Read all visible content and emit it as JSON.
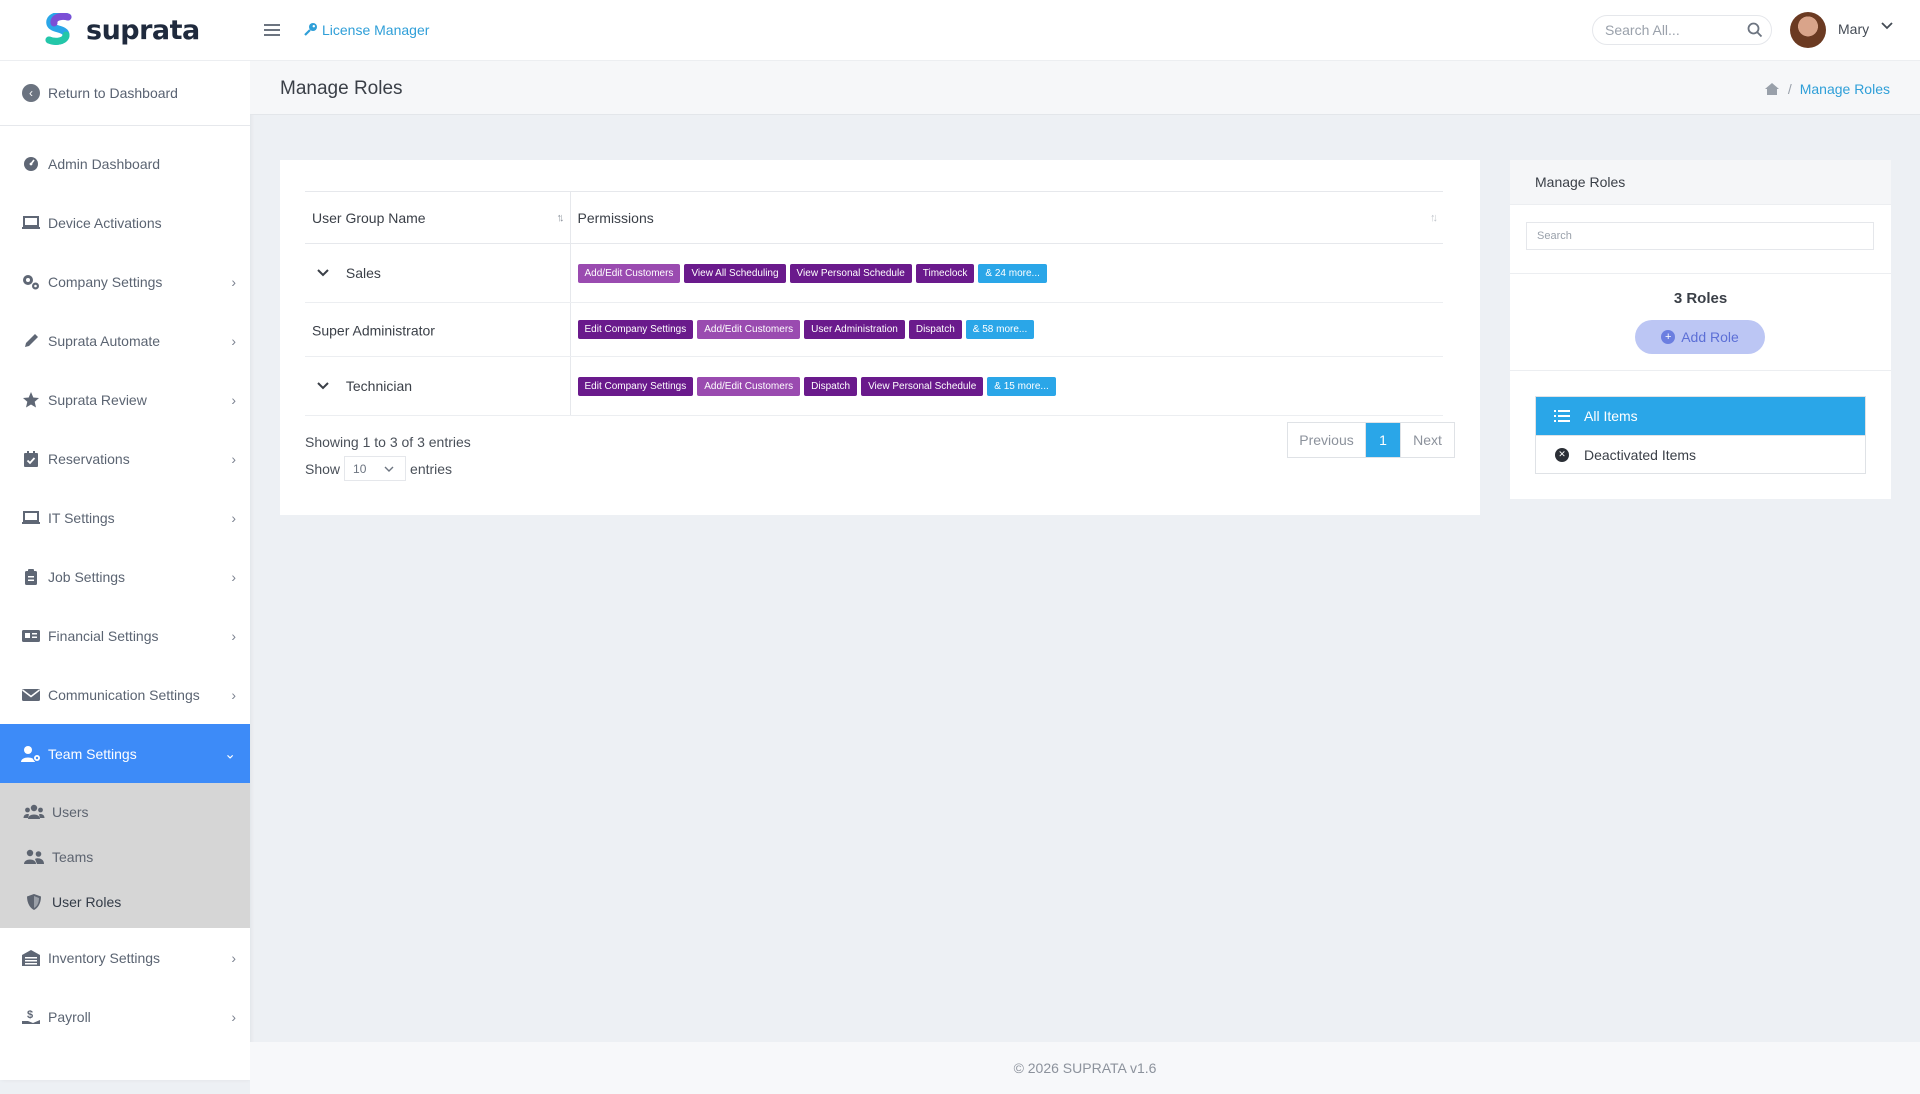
{
  "brand": {
    "name": "suprata",
    "primary": "#3d8bf8",
    "accent": "#2aa6e8"
  },
  "sidebar": {
    "return_label": "Return to Dashboard",
    "items": [
      {
        "label": "Admin Dashboard",
        "icon": "dashboard-icon"
      },
      {
        "label": "Device Activations",
        "icon": "laptop-icon"
      },
      {
        "label": "Company Settings",
        "icon": "gears-icon"
      },
      {
        "label": "Suprata Automate",
        "icon": "pencil-icon"
      },
      {
        "label": "Suprata Review",
        "icon": "star-icon"
      },
      {
        "label": "Reservations",
        "icon": "calendar-check-icon"
      },
      {
        "label": "IT Settings",
        "icon": "laptop-icon"
      },
      {
        "label": "Job Settings",
        "icon": "clipboard-icon"
      },
      {
        "label": "Financial Settings",
        "icon": "id-card-icon"
      },
      {
        "label": "Communication Settings",
        "icon": "envelope-icon"
      },
      {
        "label": "Team Settings",
        "icon": "user-gear-icon"
      }
    ],
    "sub_items": [
      {
        "label": "Users",
        "icon": "users-icon"
      },
      {
        "label": "Teams",
        "icon": "user-group-icon"
      },
      {
        "label": "User Roles",
        "icon": "shield-icon"
      }
    ],
    "after_items": [
      {
        "label": "Inventory Settings",
        "icon": "warehouse-icon"
      },
      {
        "label": "Payroll",
        "icon": "hand-dollar-icon"
      }
    ]
  },
  "header": {
    "license_label": "License Manager",
    "search_placeholder": "Search All...",
    "user_name": "Mary"
  },
  "page": {
    "title": "Manage Roles",
    "breadcrumb_current": "Manage Roles"
  },
  "table": {
    "col_name": "User Group Name",
    "col_permissions": "Permissions",
    "rows": [
      {
        "name": "Sales",
        "expandable": true,
        "tags": [
          {
            "text": "Add/Edit Customers",
            "style": "light"
          },
          {
            "text": "View All Scheduling",
            "style": "dark"
          },
          {
            "text": "View Personal Schedule",
            "style": "dark"
          },
          {
            "text": "Timeclock",
            "style": "dark"
          },
          {
            "text": "& 24 more...",
            "style": "more"
          }
        ]
      },
      {
        "name": "Super Administrator",
        "expandable": false,
        "tags": [
          {
            "text": "Edit Company Settings",
            "style": "dark"
          },
          {
            "text": "Add/Edit Customers",
            "style": "light"
          },
          {
            "text": "User Administration",
            "style": "dark"
          },
          {
            "text": "Dispatch",
            "style": "dark"
          },
          {
            "text": "& 58 more...",
            "style": "more"
          }
        ]
      },
      {
        "name": "Technician",
        "expandable": true,
        "tags": [
          {
            "text": "Edit Company Settings",
            "style": "dark"
          },
          {
            "text": "Add/Edit Customers",
            "style": "light"
          },
          {
            "text": "Dispatch",
            "style": "dark"
          },
          {
            "text": "View Personal Schedule",
            "style": "dark"
          },
          {
            "text": "& 15 more...",
            "style": "more"
          }
        ]
      }
    ],
    "showing_text": "Showing 1 to 3 of 3 entries",
    "show_label": "Show",
    "page_length": "10",
    "entries_label": "entries",
    "pager": {
      "previous": "Previous",
      "current": "1",
      "next": "Next"
    }
  },
  "panel": {
    "title": "Manage Roles",
    "search_placeholder": "Search",
    "count_label": "3 Roles",
    "add_label": "Add Role",
    "filters": [
      {
        "label": "All Items",
        "active": true
      },
      {
        "label": "Deactivated Items",
        "active": false
      }
    ]
  },
  "footer": {
    "text": "© 2026 SUPRATA v1.6"
  }
}
